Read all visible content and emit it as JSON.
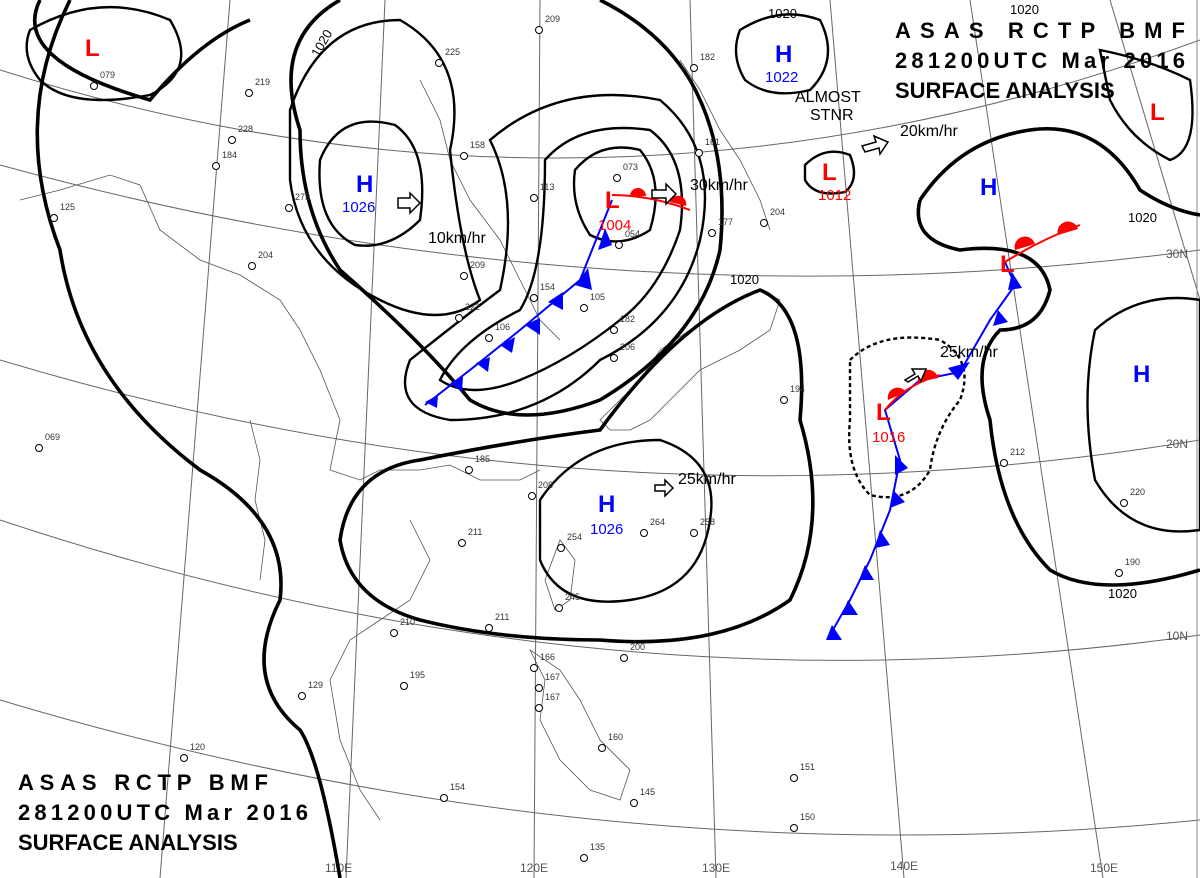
{
  "header": {
    "line1": "ASAS     RCTP     BMF",
    "line2": "281200UTC     Mar     2016",
    "line3": "SURFACE  ANALYSIS"
  },
  "footer": {
    "line1": "ASAS     RCTP     BMF",
    "line2": "281200UTC     Mar     2016",
    "line3": "SURFACE  ANALYSIS"
  },
  "grid": {
    "lon": [
      "110E",
      "120E",
      "130E",
      "140E",
      "150E"
    ],
    "lat": [
      "30N",
      "20N",
      "10N"
    ]
  },
  "colors": {
    "high": "#0000ff",
    "low": "#ff0000",
    "cold_front": "#0000ff",
    "warm_front": "#ff0000"
  },
  "centers": [
    {
      "type": "L",
      "value": ""
    },
    {
      "type": "H",
      "value": "1026"
    },
    {
      "type": "L",
      "value": "1004"
    },
    {
      "type": "H",
      "value": "1022"
    },
    {
      "type": "L",
      "value": "1012"
    },
    {
      "type": "H",
      "value": ""
    },
    {
      "type": "L",
      "value": ""
    },
    {
      "type": "L",
      "value": "1016"
    },
    {
      "type": "H",
      "value": "1026"
    },
    {
      "type": "H",
      "value": ""
    },
    {
      "type": "L",
      "value": ""
    }
  ],
  "motions": [
    "10km/hr",
    "30km/hr",
    "20km/hr",
    "25km/hr",
    "25km/hr"
  ],
  "stationary_note": {
    "line1": "ALMOST",
    "line2": "STNR"
  },
  "isobar_labels": [
    "1020",
    "1020",
    "1020",
    "1020",
    "1020",
    "1020"
  ],
  "stations": [
    "209",
    "225",
    "219",
    "228",
    "184",
    "158",
    "275",
    "204",
    "209",
    "222",
    "182",
    "106",
    "105",
    "154",
    "113",
    "073",
    "054",
    "161",
    "177",
    "204",
    "182",
    "206",
    "194",
    "212",
    "220",
    "190",
    "185",
    "208",
    "211",
    "254",
    "264",
    "258",
    "245",
    "211",
    "210",
    "195",
    "129",
    "166",
    "167",
    "160",
    "200",
    "145",
    "167",
    "154",
    "151",
    "150",
    "135",
    "120",
    "069",
    "079",
    "125"
  ]
}
